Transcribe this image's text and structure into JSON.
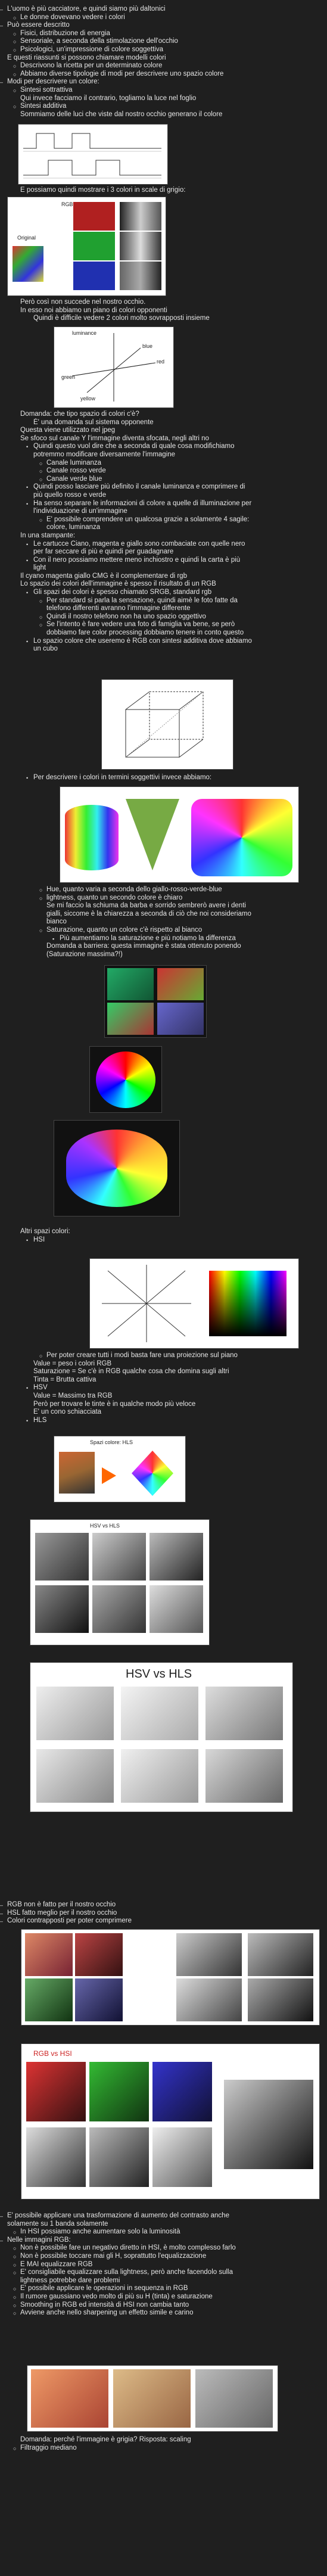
{
  "sections": [
    {
      "lines": [
        {
          "b": "–",
          "t": "L'uomo è più cacciatore, e quindi siamo più daltonici",
          "l": 0
        },
        {
          "b": "○",
          "t": "Le donne dovevano vedere i colori",
          "l": 1
        },
        {
          "b": "–",
          "t": "Può essere descritto",
          "l": 0
        },
        {
          "b": "○",
          "t": "Fisici, distribuzione di energia",
          "l": 1
        },
        {
          "b": "○",
          "t": "Sensoriale, a seconda della stimolazione dell'occhio",
          "l": 1
        },
        {
          "b": "○",
          "t": "Psicologici, un'impressione di colore soggettiva",
          "l": 1
        },
        {
          "b": "",
          "t": "E questi riassunti si possono chiamare modelli colori",
          "l": 0
        },
        {
          "b": "○",
          "t": "Descrivono la ricetta per un determinato colore",
          "l": 1
        },
        {
          "b": "○",
          "t": "Abbiamo diverse tipologie di modi per descrivere uno spazio colore",
          "l": 1
        },
        {
          "b": "–",
          "t": "Modi per descrivere un colore:",
          "l": 0
        },
        {
          "b": "○",
          "t": "Sintesi sottrattiva",
          "l": 1
        },
        {
          "b": "",
          "t": "Qui invece facciamo il contrario, togliamo la luce nel foglio",
          "l": 1
        },
        {
          "b": "○",
          "t": "Sintesi additiva",
          "l": 1
        },
        {
          "b": "",
          "t": "Sommiamo delle luci che viste dal nostro occhio generano il colore",
          "l": 1
        }
      ]
    },
    {
      "lines": [
        {
          "b": "",
          "t": "E possiamo quindi mostrare i 3 colori in scale di grigio:",
          "l": 1
        }
      ]
    },
    {
      "lines": [
        {
          "b": "",
          "t": "Però così non succede nel nostro occhio.",
          "l": 1
        },
        {
          "b": "",
          "t": "In esso noi abbiamo un piano di colori opponenti",
          "l": 1
        },
        {
          "b": "",
          "t": "Quindi è difficile vedere 2 colori molto sovrapposti insieme",
          "l": 2
        }
      ]
    },
    {
      "lines": [
        {
          "b": "",
          "t": "Domanda: che tipo spazio di colori c'è?",
          "l": 1
        },
        {
          "b": "",
          "t": "È' una domanda sul sistema opponente",
          "l": 2
        },
        {
          "b": "",
          "t": "Questa viene utilizzato nel jpeg",
          "l": 1
        },
        {
          "b": "",
          "t": "Se sfoco sul canale Y l'immagine diventa sfocata, negli altri no",
          "l": 1
        },
        {
          "b": "•",
          "t": "Quindi questo vuol dire che a seconda di quale cosa modifichiamo",
          "l": 2
        },
        {
          "b": "",
          "t": "potremmo modificare diversamente l'immagine",
          "l": 2
        },
        {
          "b": "○",
          "t": "Canale luminanza",
          "l": 3
        },
        {
          "b": "○",
          "t": "Canale rosso verde",
          "l": 3
        },
        {
          "b": "○",
          "t": "Canale verde blue",
          "l": 3
        },
        {
          "b": "•",
          "t": "Quindi posso lasciare più definito il canale luminanza e comprimere di",
          "l": 2
        },
        {
          "b": "",
          "t": "più quello rosso e verde",
          "l": 2
        },
        {
          "b": "•",
          "t": "Ha senso separare le informazioni di colore a quelle di illuminazione per",
          "l": 2
        },
        {
          "b": "",
          "t": "l'individuazione di un'immagine",
          "l": 2
        },
        {
          "b": "○",
          "t": "E' possibile comprendere un qualcosa grazie a solamente 4 sagile:",
          "l": 3
        },
        {
          "b": "",
          "t": "colore, luminanza",
          "l": 3
        },
        {
          "b": "",
          "t": "In una stampante:",
          "l": 1
        },
        {
          "b": "•",
          "t": "Le cartucce Ciano, magenta e giallo sono combaciate con quelle nero",
          "l": 2
        },
        {
          "b": "",
          "t": "per far seccare di più e quindi per guadagnare",
          "l": 2
        },
        {
          "b": "•",
          "t": "Con il nero possiamo mettere meno inchiostro e quindi la carta è più",
          "l": 2
        },
        {
          "b": "",
          "t": "light",
          "l": 2
        },
        {
          "b": "",
          "t": "Il cyano magenta giallo CMG è il complementare di rgb",
          "l": 1
        },
        {
          "b": "",
          "t": "Lo spazio dei colori dell'immagine è spesso il risultato di un RGB",
          "l": 1
        },
        {
          "b": "•",
          "t": "Gli spazi dei colori è spesso chiamato SRGB, standard rgb",
          "l": 2
        },
        {
          "b": "○",
          "t": "Per standard si parla la sensazione, quindi aimè le foto fatte da",
          "l": 3
        },
        {
          "b": "",
          "t": "telefono differenti avranno l'immagine differente",
          "l": 3
        },
        {
          "b": "○",
          "t": "Quindi il nostro telefono non ha uno spazio oggettivo",
          "l": 3
        },
        {
          "b": "○",
          "t": "Se l'intento è fare vedere una foto di famiglia va bene, se però",
          "l": 3
        },
        {
          "b": "",
          "t": "dobbiamo fare color processing dobbiamo tenere in conto questo",
          "l": 3
        },
        {
          "b": "•",
          "t": "Lo spazio colore che useremo è RGB con sintesi additiva dove abbiamo",
          "l": 2
        },
        {
          "b": "",
          "t": "un cubo",
          "l": 2
        }
      ]
    },
    {
      "lines": [
        {
          "b": "•",
          "t": "Per descrivere i colori in termini soggettivi invece abbiamo:",
          "l": 2
        }
      ]
    },
    {
      "lines": [
        {
          "b": "○",
          "t": "Hue, quanto varia a seconda dello giallo-rosso-verde-blue",
          "l": 3
        },
        {
          "b": "○",
          "t": "lightness, quanto un secondo colore è chiaro",
          "l": 3
        },
        {
          "b": "",
          "t": "Se mi faccio la schiuma da barba e sorrido sembrerò avere i denti",
          "l": 3
        },
        {
          "b": "",
          "t": "gialli, siccome è la chiarezza a seconda di ciò che noi consideriamo",
          "l": 3
        },
        {
          "b": "",
          "t": "bianco",
          "l": 3
        },
        {
          "b": "○",
          "t": "Saturazione, quanto un colore c'è rispetto al bianco",
          "l": 3
        },
        {
          "b": "▪",
          "t": "Più aumentiamo la saturazione e più notiamo la differenza",
          "l": 4
        },
        {
          "b": "",
          "t": "Domanda a barriera: questa immagine è stata ottenuto ponendo",
          "l": 3
        },
        {
          "b": "",
          "t": "(Saturazione massima?!)",
          "l": 3
        }
      ]
    },
    {
      "lines": [
        {
          "b": "",
          "t": "Altri spazi colori:",
          "l": 1
        },
        {
          "b": "•",
          "t": "HSI",
          "l": 2
        }
      ]
    },
    {
      "lines": [
        {
          "b": "○",
          "t": "Per poter creare tutti i modi basta fare una proiezione sul piano",
          "l": 3
        },
        {
          "b": "",
          "t": "Value = peso i colori RGB",
          "l": 2
        },
        {
          "b": "",
          "t": "Saturazione = Se c'è in RGB qualche cosa che domina sugli altri",
          "l": 2
        },
        {
          "b": "",
          "t": "Tinta = Brutta cattiva",
          "l": 2
        },
        {
          "b": "•",
          "t": "HSV",
          "l": 2
        },
        {
          "b": "",
          "t": "Value = Massimo tra RGB",
          "l": 2
        },
        {
          "b": "",
          "t": "Però per trovare le tinte è in qualche modo più veloce",
          "l": 2
        },
        {
          "b": "",
          "t": "E' un cono schiacciata",
          "l": 2
        },
        {
          "b": "•",
          "t": "HLS",
          "l": 2
        }
      ]
    },
    {
      "lines": [
        {
          "b": "–",
          "t": "RGB non è fatto per il nostro occhio",
          "l": 0
        },
        {
          "b": "–",
          "t": "HSL fatto meglio per il nostro occhio",
          "l": 0
        },
        {
          "b": "–",
          "t": "Colori contrapposti per poter comprimere",
          "l": 0
        }
      ]
    },
    {
      "lines": [
        {
          "b": "–",
          "t": "E' possibile applicare una trasformazione di aumento del contrasto anche",
          "l": 0
        },
        {
          "b": "",
          "t": "solamente su 1 banda solamente",
          "l": 0
        },
        {
          "b": "○",
          "t": "In HSI possiamo anche aumentare solo la luminosità",
          "l": 1
        },
        {
          "b": "–",
          "t": "Nelle immagini RGB:",
          "l": 0
        },
        {
          "b": "○",
          "t": "Non è possibile fare un negativo diretto in HSI, è molto complesso farlo",
          "l": 1
        },
        {
          "b": "○",
          "t": "Non è possibile toccare mai gli H, soprattutto l'equalizzazione",
          "l": 1
        },
        {
          "b": "○",
          "t": "E MAI equalizzare RGB",
          "l": 1
        },
        {
          "b": "○",
          "t": "E' consigliabile equalizzare sulla lightness, però anche facendolo sulla",
          "l": 1
        },
        {
          "b": "",
          "t": "lightness potrebbe dare problemi",
          "l": 1
        },
        {
          "b": "○",
          "t": "E' possibile applicare le operazioni in sequenza in RGB",
          "l": 1
        },
        {
          "b": "○",
          "t": "Il rumore gaussiano vedo molto di più su H (tinta) e saturazione",
          "l": 1
        },
        {
          "b": "○",
          "t": "Smoothing in RGB ed intensità di HSI non cambia tanto",
          "l": 1
        },
        {
          "b": "○",
          "t": "Avviene anche nello sharpening un effetto simile e carino",
          "l": 1
        }
      ]
    },
    {
      "lines": [
        {
          "b": "",
          "t": "Domanda: perché l'immagine è grigia? Risposta: scaling",
          "l": 1
        },
        {
          "b": "○",
          "t": "Filtraggio mediano",
          "l": 1
        }
      ]
    }
  ],
  "figures": {
    "rgb_gray": {
      "label_original": "Original",
      "label_rgb": "RGB"
    },
    "opponent": {
      "luminance": "luminance",
      "blue": "blue",
      "green": "green",
      "red": "red",
      "yellow": "yellow"
    },
    "hsi": {
      "caption": "Spazi colore: HLS"
    },
    "hsv_hls": {
      "title_small": "HSV vs HLS",
      "title_big": "HSV vs HLS"
    },
    "rgb_hsi": {
      "title": "RGB vs HSI"
    }
  },
  "colors": {
    "background": "#1f1f1f",
    "text": "#e6e6e6",
    "accent": "#ff9900"
  }
}
